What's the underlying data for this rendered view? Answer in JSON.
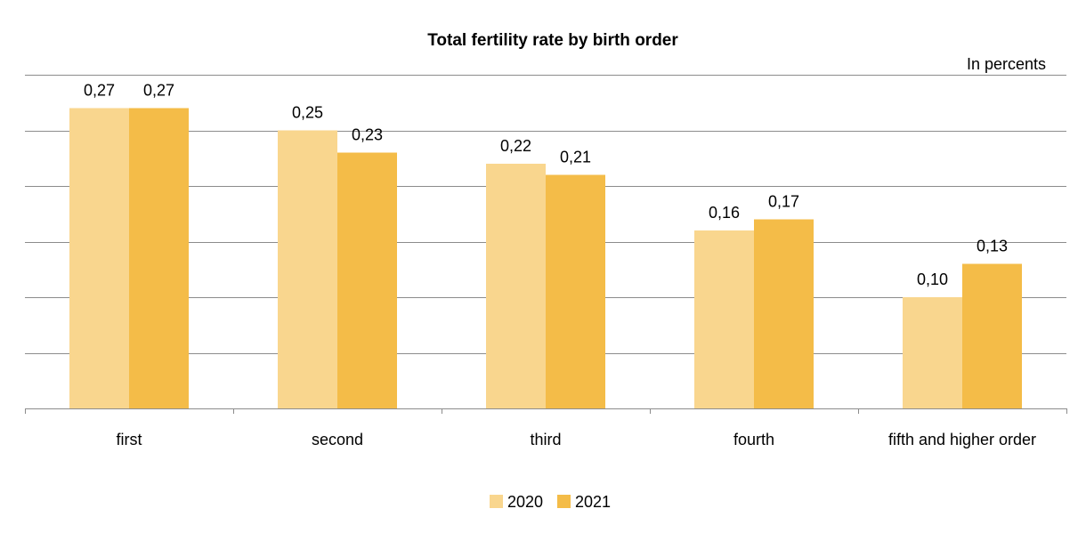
{
  "chart_data": {
    "type": "bar",
    "title": "Total fertility rate by birth order",
    "unit_label": "In percents",
    "categories": [
      "first",
      "second",
      "third",
      "fourth",
      "fifth and higher order"
    ],
    "series": [
      {
        "name": "2020",
        "values": [
          0.27,
          0.25,
          0.22,
          0.16,
          0.1
        ],
        "labels": [
          "0,27",
          "0,25",
          "0,22",
          "0,16",
          "0,10"
        ],
        "color": "#F9D68E"
      },
      {
        "name": "2021",
        "values": [
          0.27,
          0.23,
          0.21,
          0.17,
          0.13
        ],
        "labels": [
          "0,27",
          "0,23",
          "0,21",
          "0,17",
          "0,13"
        ],
        "color": "#F4BC48"
      }
    ],
    "ylim": [
      0,
      0.3
    ],
    "y_ticks_shown": false,
    "grid": true,
    "legend_position": "bottom"
  }
}
